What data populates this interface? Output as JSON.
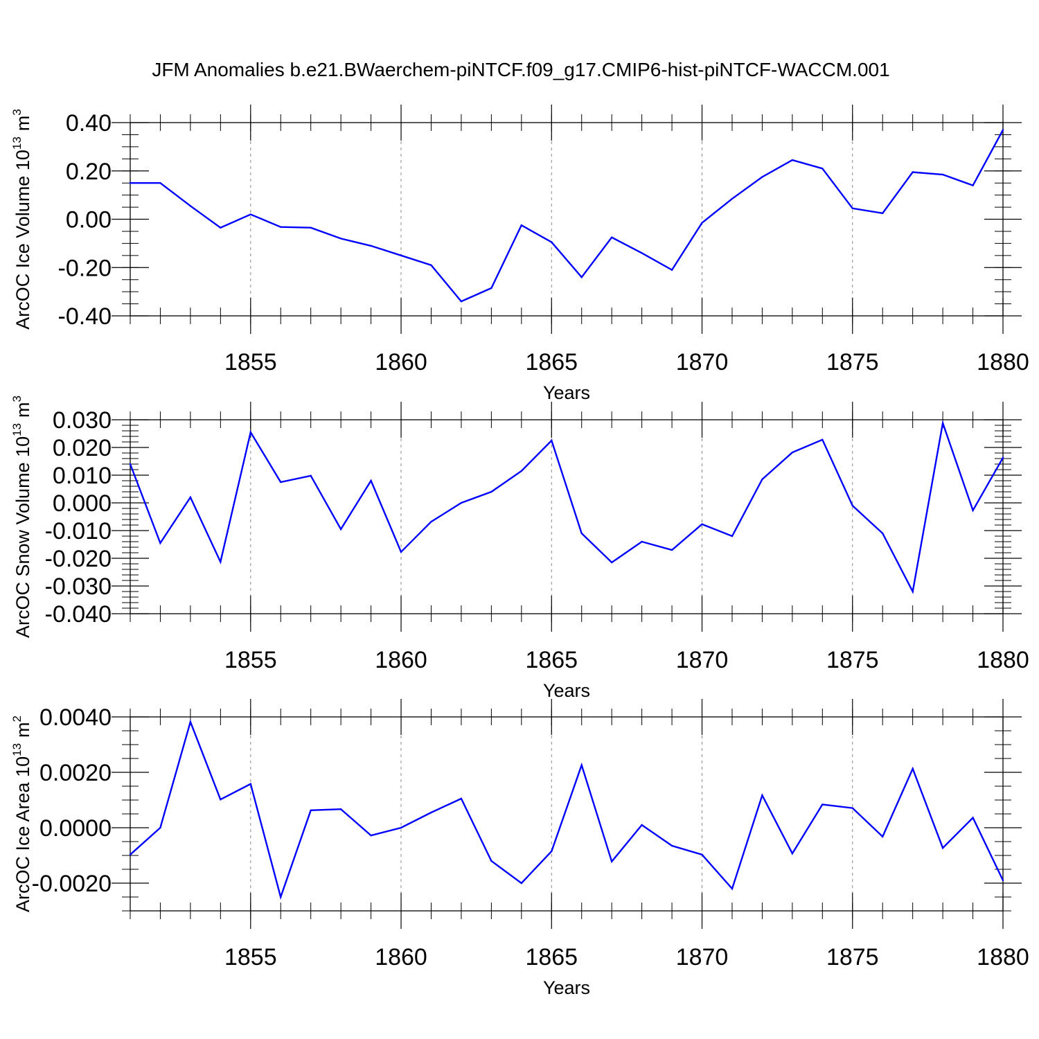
{
  "title": "JFM Anomalies b.e21.BWaerchem-piNTCF.f09_g17.CMIP6-hist-piNTCF-WACCM.001",
  "chart_data": [
    {
      "type": "line",
      "xlabel": "Years",
      "ylabel_text": "ArcOC Ice Volume 10",
      "ylabel_exp": "13",
      "ylabel_unit": "m",
      "ylabel_unit_exp": "3",
      "xlim": [
        1851,
        1880
      ],
      "ylim": [
        -0.4,
        0.4
      ],
      "x_ticks": [
        1855,
        1860,
        1865,
        1870,
        1875,
        1880
      ],
      "x_tick_labels": [
        "1855",
        "1860",
        "1865",
        "1870",
        "1875",
        "1880"
      ],
      "y_ticks": [
        -0.4,
        -0.2,
        0.0,
        0.2,
        0.4
      ],
      "y_tick_labels": [
        "-0.40",
        "-0.20",
        "0.00",
        "0.20",
        "0.40"
      ],
      "y_minor_step": 0.05,
      "grid": "vertical dashed at major x ticks",
      "color": "#0000ff",
      "x": [
        1851,
        1852,
        1853,
        1854,
        1855,
        1856,
        1857,
        1858,
        1859,
        1860,
        1861,
        1862,
        1863,
        1864,
        1865,
        1866,
        1867,
        1868,
        1869,
        1870,
        1871,
        1872,
        1873,
        1874,
        1875,
        1876,
        1877,
        1878,
        1879,
        1880
      ],
      "values": [
        0.15,
        0.15,
        0.055,
        -0.035,
        0.02,
        -0.032,
        -0.035,
        -0.08,
        -0.11,
        -0.15,
        -0.19,
        -0.34,
        -0.285,
        -0.025,
        -0.095,
        -0.24,
        -0.075,
        -0.14,
        -0.21,
        -0.015,
        0.085,
        0.175,
        0.245,
        0.21,
        0.045,
        0.025,
        0.195,
        0.185,
        0.14,
        0.37
      ]
    },
    {
      "type": "line",
      "xlabel": "Years",
      "ylabel_text": "ArcOC Snow Volume 10",
      "ylabel_exp": "13",
      "ylabel_unit": "m",
      "ylabel_unit_exp": "3",
      "xlim": [
        1851,
        1880
      ],
      "ylim": [
        -0.04,
        0.03
      ],
      "x_ticks": [
        1855,
        1860,
        1865,
        1870,
        1875,
        1880
      ],
      "x_tick_labels": [
        "1855",
        "1860",
        "1865",
        "1870",
        "1875",
        "1880"
      ],
      "y_ticks": [
        -0.04,
        -0.03,
        -0.02,
        -0.01,
        0.0,
        0.01,
        0.02,
        0.03
      ],
      "y_tick_labels": [
        "-0.040",
        "-0.030",
        "-0.020",
        "-0.010",
        "0.000",
        "0.010",
        "0.020",
        "0.030"
      ],
      "y_minor_step": 0.002,
      "grid": "vertical dashed at major x ticks",
      "color": "#0000ff",
      "x": [
        1851,
        1852,
        1853,
        1854,
        1855,
        1856,
        1857,
        1858,
        1859,
        1860,
        1861,
        1862,
        1863,
        1864,
        1865,
        1866,
        1867,
        1868,
        1869,
        1870,
        1871,
        1872,
        1873,
        1874,
        1875,
        1876,
        1877,
        1878,
        1879,
        1880
      ],
      "values": [
        0.014,
        -0.0145,
        0.002,
        -0.0213,
        0.0255,
        0.0075,
        0.0098,
        -0.0095,
        0.008,
        -0.0177,
        -0.0068,
        0.0,
        0.004,
        0.0115,
        0.0225,
        -0.011,
        -0.0215,
        -0.014,
        -0.017,
        -0.0077,
        -0.012,
        0.0085,
        0.0182,
        0.0228,
        -0.001,
        -0.011,
        -0.032,
        0.0288,
        -0.0027,
        0.0163
      ]
    },
    {
      "type": "line",
      "xlabel": "Years",
      "ylabel_text": "ArcOC Ice Area 10",
      "ylabel_exp": "13",
      "ylabel_unit": "m",
      "ylabel_unit_exp": "2",
      "xlim": [
        1851,
        1880
      ],
      "ylim": [
        -0.003,
        0.004
      ],
      "x_ticks": [
        1855,
        1860,
        1865,
        1870,
        1875,
        1880
      ],
      "x_tick_labels": [
        "1855",
        "1860",
        "1865",
        "1870",
        "1875",
        "1880"
      ],
      "y_ticks": [
        -0.002,
        0.0,
        0.002,
        0.004
      ],
      "y_tick_labels": [
        "-0.0020",
        "0.0000",
        "0.0020",
        "0.0040"
      ],
      "y_minor_step": 0.0005,
      "grid": "vertical dashed at major x ticks",
      "color": "#0000ff",
      "x": [
        1851,
        1852,
        1853,
        1854,
        1855,
        1856,
        1857,
        1858,
        1859,
        1860,
        1861,
        1862,
        1863,
        1864,
        1865,
        1866,
        1867,
        1868,
        1869,
        1870,
        1871,
        1872,
        1873,
        1874,
        1875,
        1876,
        1877,
        1878,
        1879,
        1880
      ],
      "values": [
        -0.00097,
        0.0,
        0.00382,
        0.00102,
        0.00158,
        -0.0025,
        0.00063,
        0.00067,
        -0.00028,
        0.0,
        0.00055,
        0.00105,
        -0.0012,
        -0.002,
        -0.00085,
        0.00226,
        -0.00122,
        0.0001,
        -0.00065,
        -0.00097,
        -0.0022,
        0.00117,
        -0.00093,
        0.00084,
        0.00071,
        -0.00032,
        0.00213,
        -0.00073,
        0.00036,
        -0.0019
      ]
    }
  ]
}
